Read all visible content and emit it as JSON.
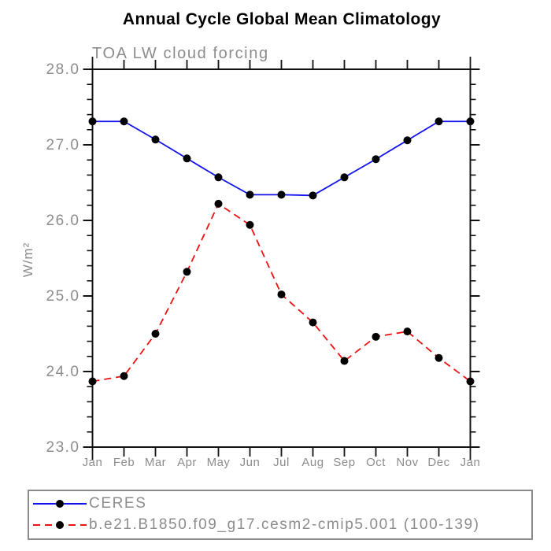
{
  "chart_data": {
    "type": "line",
    "title": "Annual Cycle Global Mean Climatology",
    "subtitle": "TOA LW cloud forcing",
    "xlabel": "",
    "ylabel": "W/m²",
    "ylim": [
      23.0,
      28.0
    ],
    "ytick_major_interval": 1.0,
    "ytick_minor_interval": 0.2,
    "ytick_labels": [
      "23.0",
      "24.0",
      "25.0",
      "26.0",
      "27.0",
      "28.0"
    ],
    "categories": [
      "Jan",
      "Feb",
      "Mar",
      "Apr",
      "May",
      "Jun",
      "Jul",
      "Aug",
      "Sep",
      "Oct",
      "Nov",
      "Dec",
      "Jan"
    ],
    "grid": false,
    "legend_position": "bottom-left",
    "series": [
      {
        "name": "CERES",
        "line_style": "solid",
        "line_color": "#1111ee",
        "marker": "circle",
        "marker_color": "#000000",
        "values": [
          27.31,
          27.31,
          27.07,
          26.82,
          26.57,
          26.34,
          26.34,
          26.33,
          26.57,
          26.81,
          27.06,
          27.31,
          27.31
        ]
      },
      {
        "name": "b.e21.B1850.f09_g17.cesm2-cmip5.001 (100-139)",
        "line_style": "dashed",
        "line_color": "#ee1111",
        "marker": "circle",
        "marker_color": "#000000",
        "values": [
          23.87,
          23.94,
          24.5,
          25.32,
          26.22,
          25.94,
          25.02,
          24.65,
          24.14,
          24.46,
          24.53,
          24.18,
          23.87
        ]
      }
    ],
    "axis_color": "#111111",
    "tick_label_color": "#8c8c8c"
  }
}
